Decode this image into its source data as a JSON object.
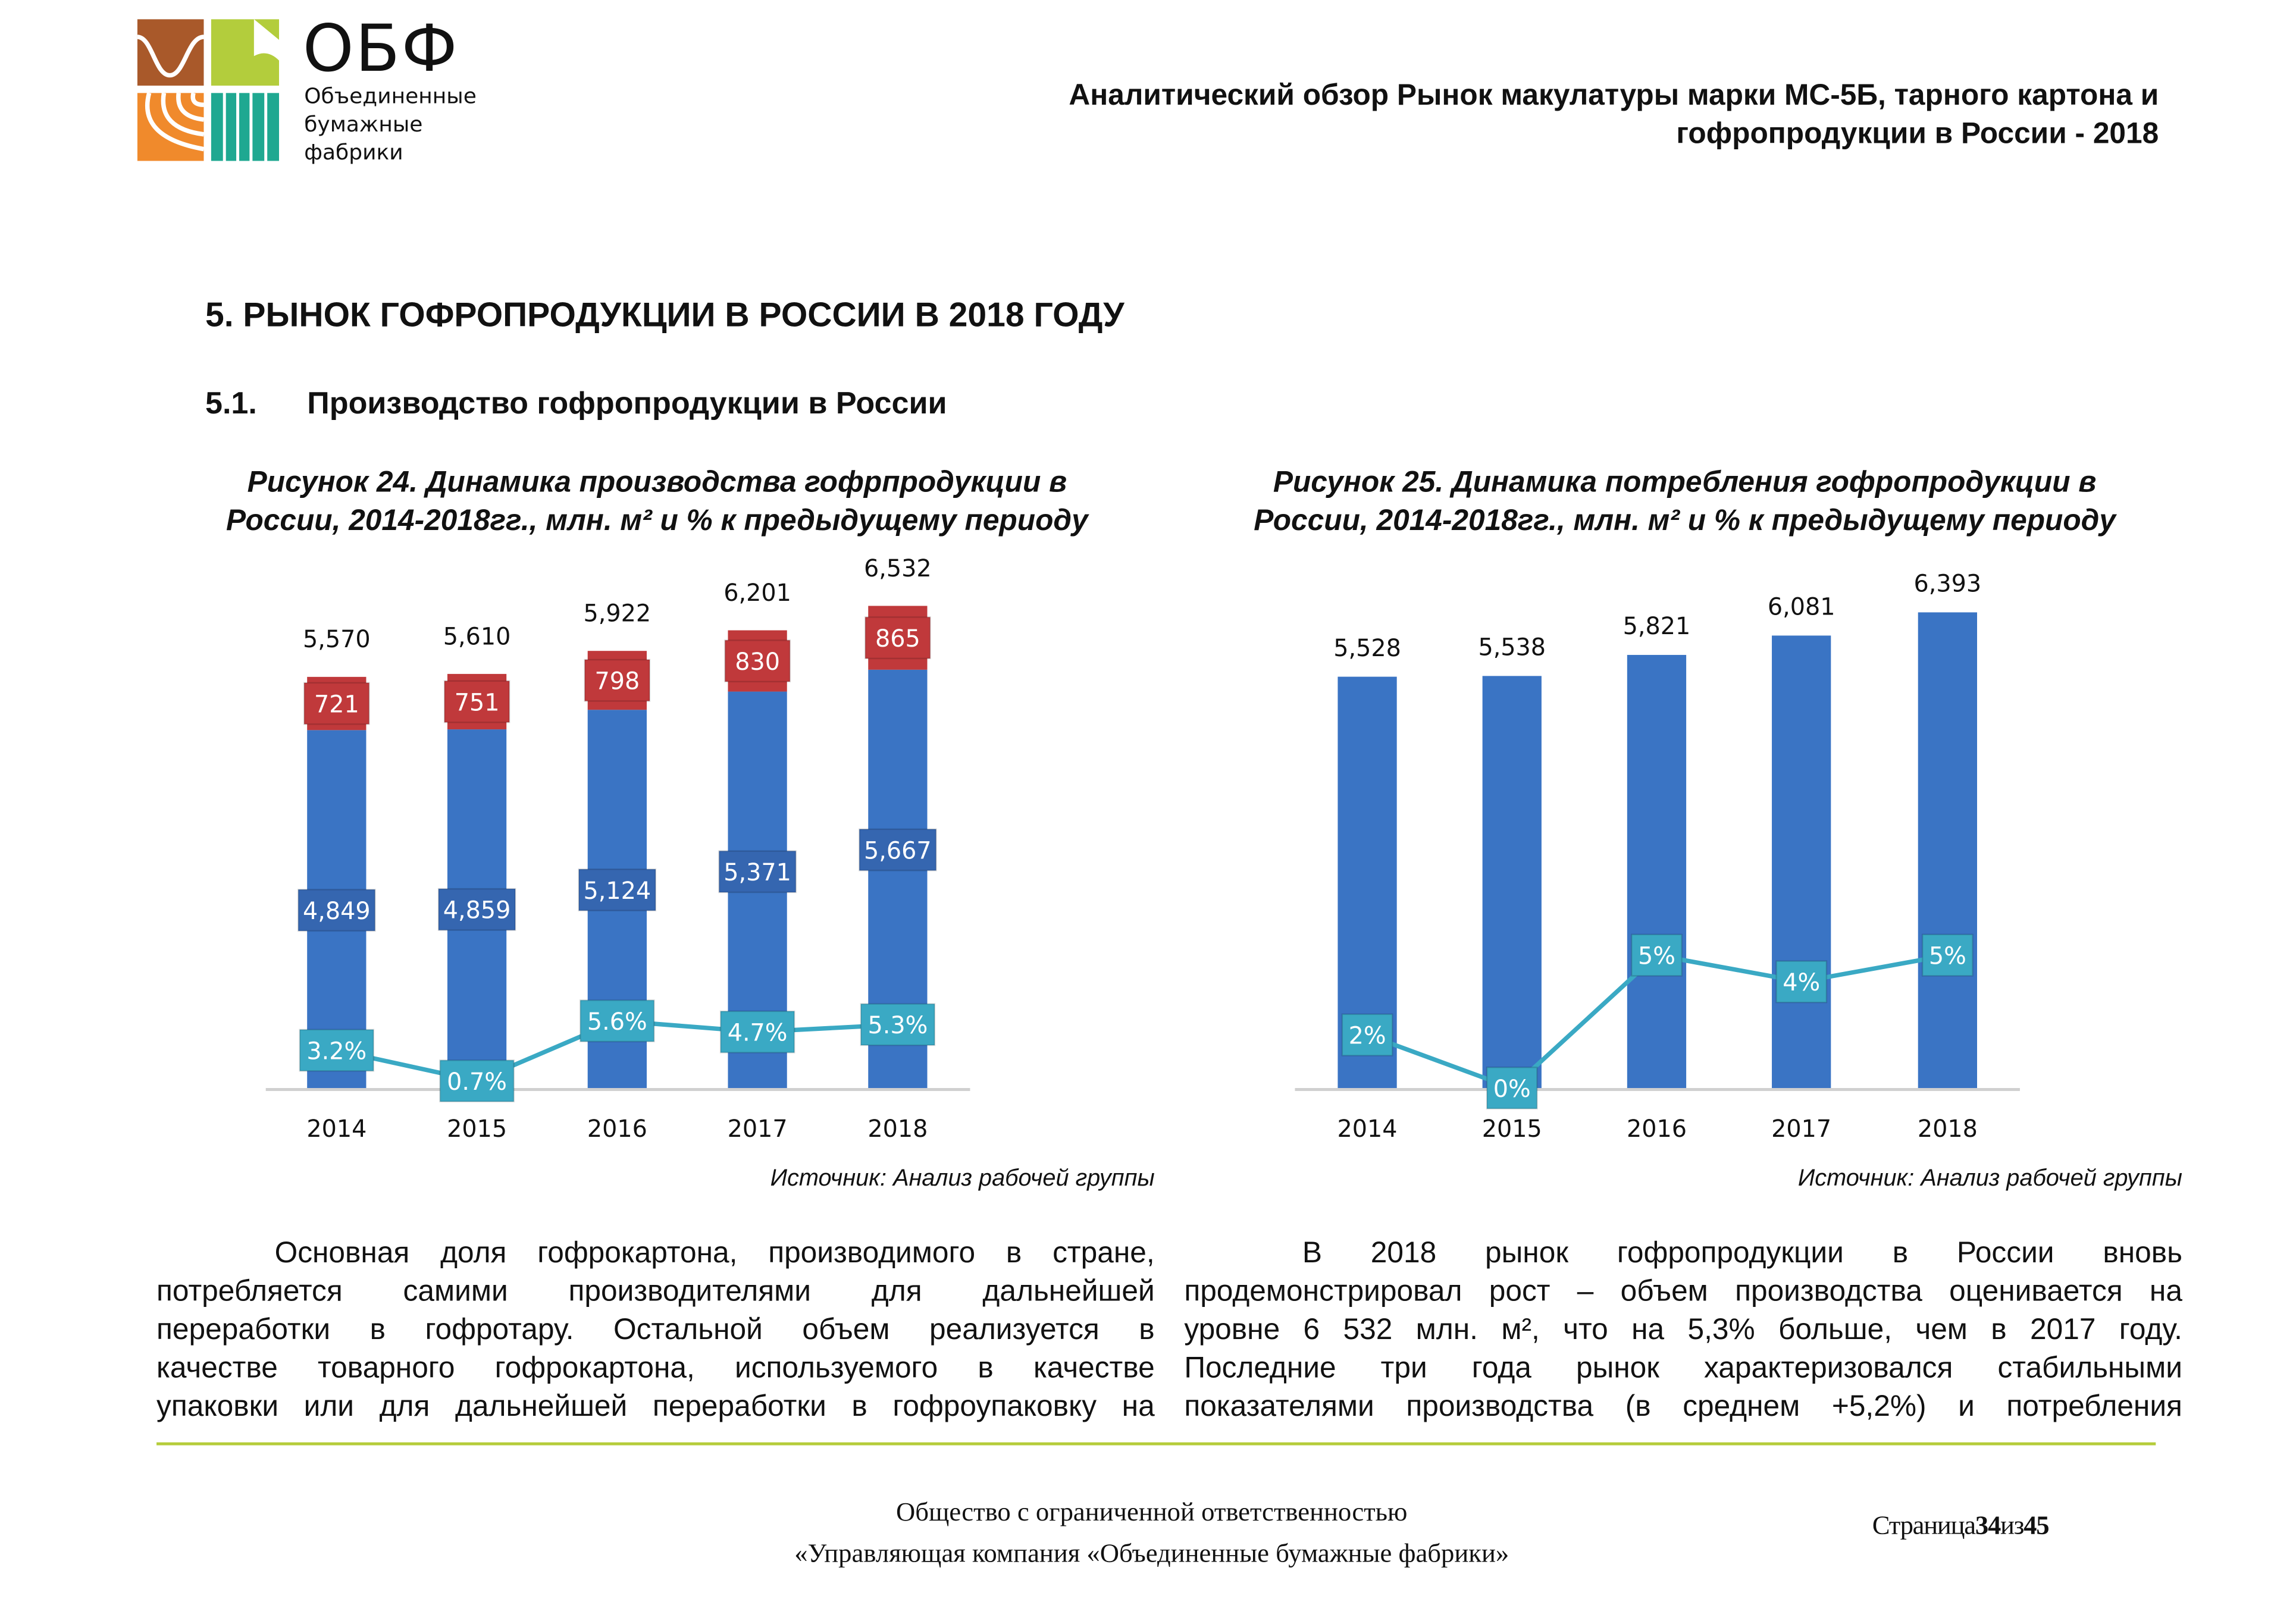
{
  "header": {
    "logo": {
      "name": "ОБФ",
      "subtitle_lines": [
        "Объединенные",
        "бумажные",
        "фабрики"
      ]
    },
    "title_lines": [
      "Аналитический обзор Рынок макулатуры марки МС-5Б, тарного картона и",
      "гофропродукции в России - 2018"
    ]
  },
  "section": {
    "heading": "5. РЫНОК ГОФРОПРОДУКЦИИ В РОССИИ В 2018 ГОДУ",
    "sub_number": "5.1.",
    "sub_title": "Производство гофропродукции в России"
  },
  "figures": [
    {
      "caption_lines": [
        "Рисунок 24. Динамика производства гофрпродукции в",
        "России, 2014-2018гг., млн. м² и % к предыдущему периоду"
      ],
      "source": "Источник: Анализ рабочей группы"
    },
    {
      "caption_lines": [
        "Рисунок 25. Динамика потребления гофропродукции в",
        "России, 2014-2018гг., млн. м² и % к предыдущему периоду"
      ],
      "source": "Источник: Анализ рабочей группы"
    }
  ],
  "chart_data": [
    {
      "type": "bar",
      "stacked": true,
      "categories": [
        "2014",
        "2015",
        "2016",
        "2017",
        "2018"
      ],
      "series": [
        {
          "values": [
            4849,
            4859,
            5124,
            5371,
            5667
          ],
          "labels": [
            "4,849",
            "4,859",
            "5,124",
            "5,371",
            "5,667"
          ],
          "color": "#3a74c4"
        },
        {
          "values": [
            721,
            751,
            798,
            830,
            865
          ],
          "labels": [
            "721",
            "751",
            "798",
            "830",
            "865"
          ],
          "color": "#c0393b"
        }
      ],
      "totals": [
        5570,
        5610,
        5922,
        6201,
        6532
      ],
      "total_labels": [
        "5,570",
        "5,610",
        "5,922",
        "6,201",
        "6,532"
      ],
      "line": {
        "values": [
          3.2,
          0.7,
          5.6,
          4.7,
          5.3
        ],
        "labels": [
          "3.2%",
          "0.7%",
          "5.6%",
          "4.7%",
          "5.3%"
        ],
        "color": "#3aa9c4"
      },
      "grid": false,
      "legend": "none"
    },
    {
      "type": "bar",
      "categories": [
        "2014",
        "2015",
        "2016",
        "2017",
        "2018"
      ],
      "series": [
        {
          "values": [
            5528,
            5538,
            5821,
            6081,
            6393
          ],
          "labels": [
            "5,528",
            "5,538",
            "5,821",
            "6,081",
            "6,393"
          ],
          "color": "#3a74c4"
        }
      ],
      "line": {
        "values": [
          2,
          0,
          5,
          4,
          5
        ],
        "labels": [
          "2%",
          "0%",
          "5%",
          "4%",
          "5%"
        ],
        "color": "#3aa9c4"
      },
      "grid": false,
      "legend": "none"
    }
  ],
  "body": {
    "left_lines": [
      "Основная доля гофрокартона, производимого в стране,",
      "потребляется самими производителями для дальнейшей",
      "переработки в гофротару. Остальной объем реализуется в",
      "качестве товарного гофрокартона, используемого в качестве",
      "упаковки или для дальнейшей переработки в гофроупаковку на"
    ],
    "right_lines": [
      "В 2018 рынок гофропродукции в России вновь",
      "продемонстрировал рост – объем производства оценивается на",
      "уровне 6 532 млн. м², что на 5,3% больше, чем в 2017 году.",
      "Последние три года рынок характеризовался стабильными",
      "показателями производства (в среднем +5,2%) и потребления"
    ]
  },
  "footer": {
    "lines": [
      "Общество с ограниченной ответственностью",
      "«Управляющая компания «Объединенные бумажные фабрики»"
    ],
    "page_label": "Страница",
    "page": "34",
    "of_label": "из",
    "total": "45"
  },
  "colors": {
    "accent_rule": "#b5cc3a"
  }
}
